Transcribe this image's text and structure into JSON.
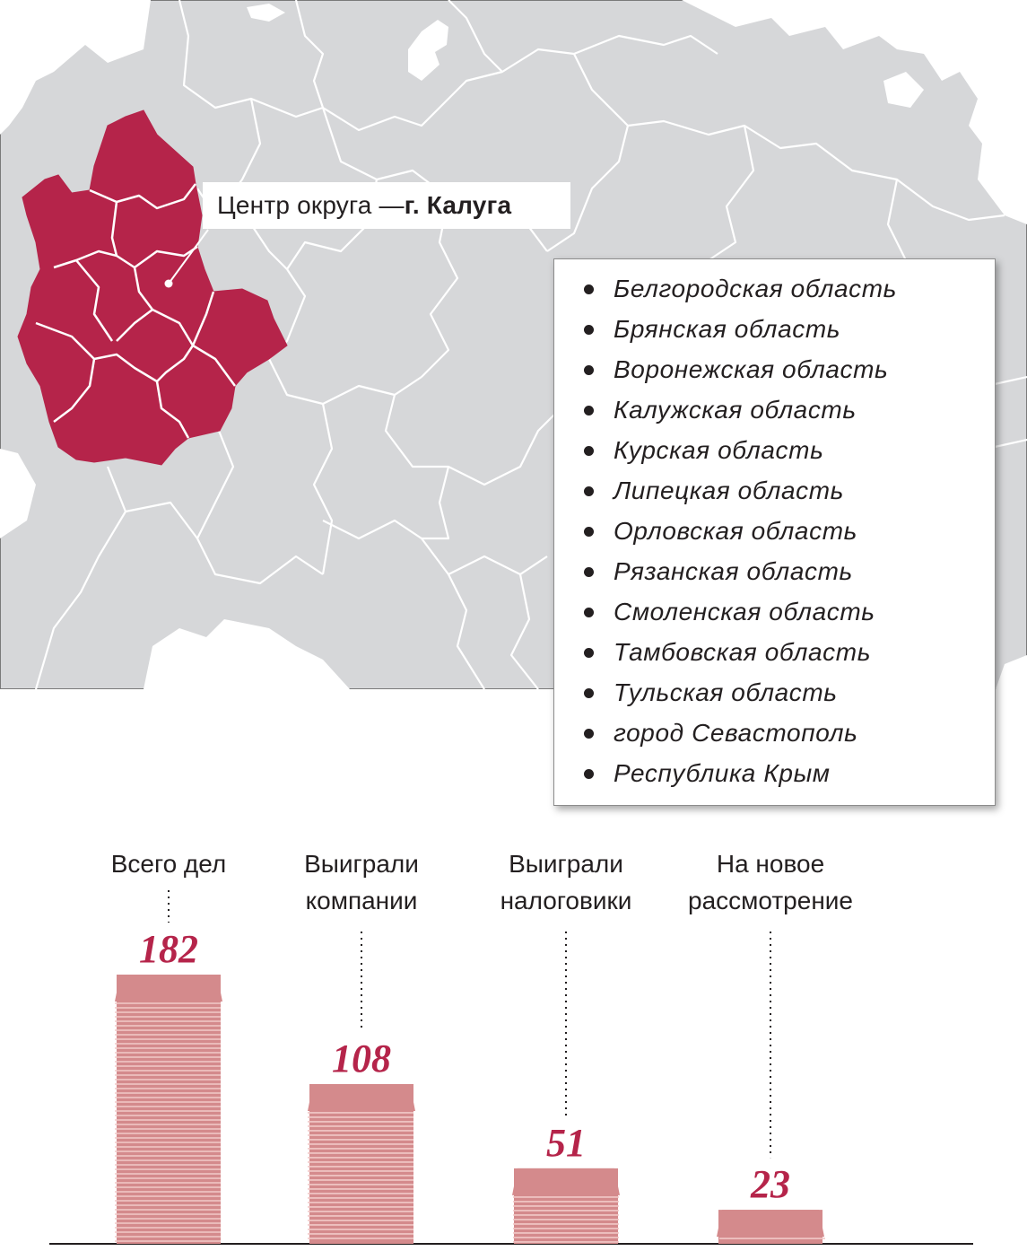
{
  "map": {
    "center_label_prefix": "Центр округа — ",
    "center_label_city": "г. Калуга",
    "colors": {
      "highlight": "#b5244a",
      "land": "#d6d7d9",
      "water": "#ffffff",
      "border": "#ffffff"
    }
  },
  "regions": [
    "Белгородская область",
    "Брянская область",
    "Воронежская область",
    "Калужская область",
    "Курская область",
    "Липецкая область",
    "Орловская область",
    "Рязанская область",
    "Смоленская область",
    "Тамбовская область",
    "Тульская область",
    "город Севастополь",
    "Республика Крым"
  ],
  "chart_data": {
    "type": "bar",
    "categories": [
      "Всего дел",
      "Выиграли компании",
      "Выиграли налоговики",
      "На новое рассмотрение"
    ],
    "category_lines": [
      [
        "Всего дел"
      ],
      [
        "Выиграли",
        "компании"
      ],
      [
        "Выиграли",
        "налоговики"
      ],
      [
        "На новое",
        "рассмотрение"
      ]
    ],
    "values": [
      182,
      108,
      51,
      23
    ],
    "value_labels": [
      "182",
      "108",
      "51",
      "23"
    ],
    "colors": {
      "stack_fill": "#d48a8c",
      "stack_stripe": "#f2c9c8",
      "value_text": "#b5244a",
      "leader": "#231f20",
      "baseline": "#231f20"
    }
  }
}
